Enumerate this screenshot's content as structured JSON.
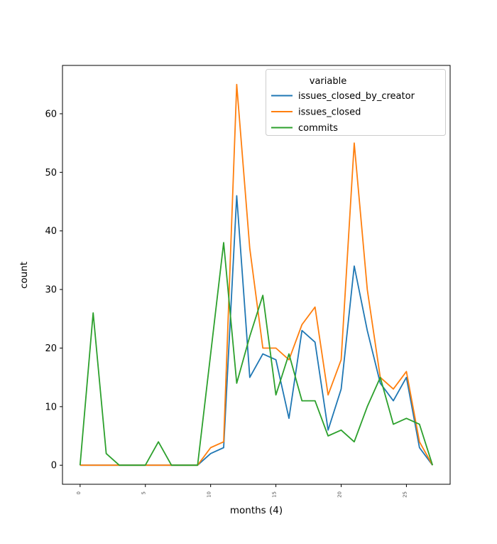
{
  "figure": {
    "xlabel": "months (4)",
    "ylabel": "count",
    "background": "#ffffff",
    "axes_edge_color": "#000000"
  },
  "legend": {
    "title": "variable",
    "position": "upper right",
    "entries": [
      {
        "label": "issues_closed_by_creator",
        "color": "#1f77b4"
      },
      {
        "label": "issues_closed",
        "color": "#ff7f0e"
      },
      {
        "label": "commits",
        "color": "#2ca02c"
      }
    ]
  },
  "chart_data": {
    "type": "line",
    "title": "",
    "xlabel": "months (4)",
    "ylabel": "count",
    "grid": false,
    "legend_position": "upper right",
    "legend_title": "variable",
    "x": [
      0,
      1,
      2,
      3,
      4,
      5,
      6,
      7,
      8,
      9,
      10,
      11,
      12,
      13,
      14,
      15,
      16,
      17,
      18,
      19,
      20,
      21,
      22,
      23,
      24,
      25,
      26,
      27
    ],
    "xticks": [
      0,
      5,
      10,
      15,
      20,
      25
    ],
    "yticks": [
      0,
      10,
      20,
      30,
      40,
      50,
      60
    ],
    "xlim": [
      -1.35,
      28.35
    ],
    "ylim": [
      -3.25,
      68.25
    ],
    "series": [
      {
        "name": "issues_closed_by_creator",
        "color": "#1f77b4",
        "values": [
          0,
          0,
          0,
          0,
          0,
          0,
          0,
          0,
          0,
          0,
          2,
          3,
          46,
          15,
          19,
          18,
          8,
          23,
          21,
          6,
          13,
          34,
          23,
          14,
          11,
          15,
          3,
          0
        ]
      },
      {
        "name": "issues_closed",
        "color": "#ff7f0e",
        "values": [
          0,
          0,
          0,
          0,
          0,
          0,
          0,
          0,
          0,
          0,
          3,
          4,
          65,
          37,
          20,
          20,
          18,
          24,
          27,
          12,
          18,
          55,
          30,
          15,
          13,
          16,
          4,
          0
        ]
      },
      {
        "name": "commits",
        "color": "#2ca02c",
        "values": [
          0,
          26,
          2,
          0,
          0,
          0,
          4,
          0,
          0,
          0,
          19,
          38,
          14,
          22,
          29,
          12,
          19,
          11,
          11,
          5,
          6,
          4,
          10,
          15,
          7,
          8,
          7,
          0
        ]
      }
    ]
  }
}
